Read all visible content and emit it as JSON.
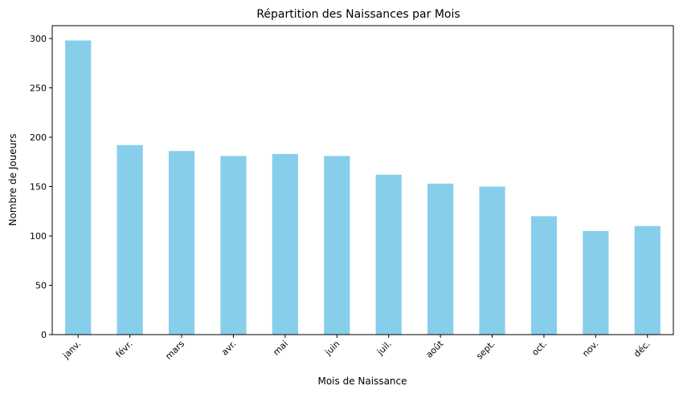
{
  "chart_data": {
    "type": "bar",
    "title": "Répartition des Naissances par Mois",
    "xlabel": "Mois de Naissance",
    "ylabel": "Nombre de Joueurs",
    "categories": [
      "janv.",
      "févr.",
      "mars",
      "avr.",
      "mai",
      "juin",
      "juil.",
      "août",
      "sept.",
      "oct.",
      "nov.",
      "déc."
    ],
    "values": [
      298,
      192,
      186,
      181,
      183,
      181,
      162,
      153,
      150,
      120,
      105,
      110
    ],
    "ylim": [
      0,
      313
    ],
    "yticks": [
      0,
      50,
      100,
      150,
      200,
      250,
      300
    ],
    "bar_color": "#87ceeb",
    "grid": false,
    "legend": "none"
  }
}
